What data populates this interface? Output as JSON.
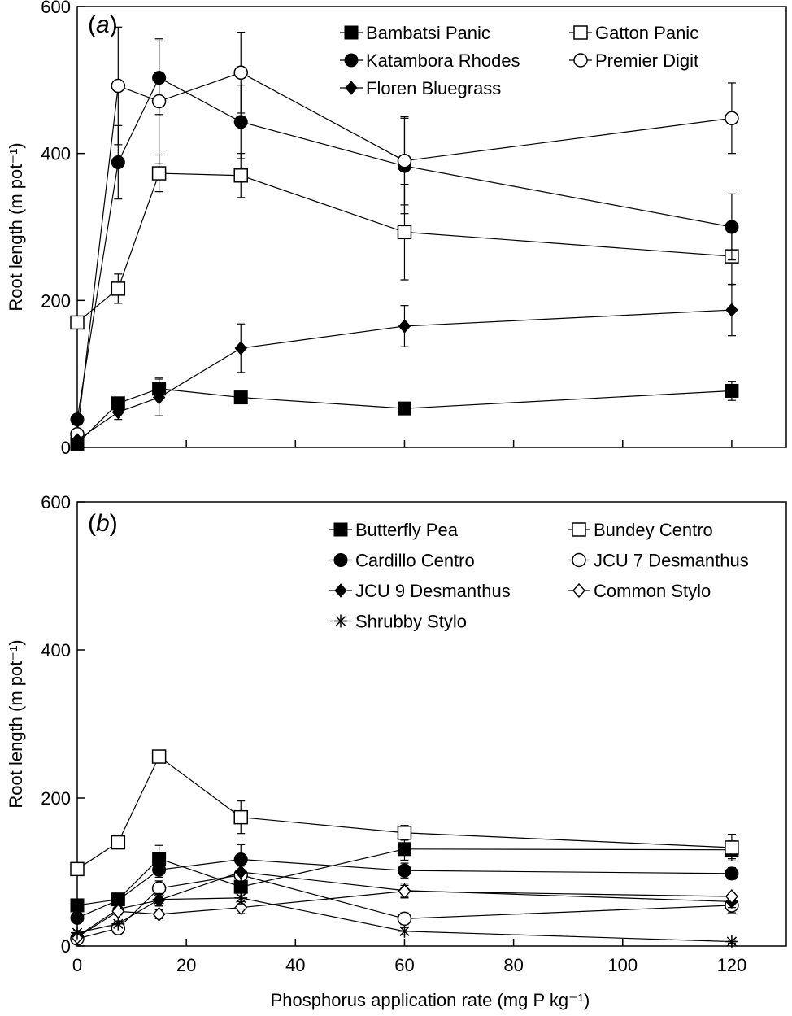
{
  "chart_data": [
    {
      "type": "line",
      "panel_label": "(a)",
      "panel_letter": "a",
      "ylabel": "Root length (m pot⁻¹)",
      "xlabel": "",
      "x_ticks": [
        "0",
        "20",
        "40",
        "60",
        "80",
        "100",
        "120"
      ],
      "y_ticks": [
        "0",
        "200",
        "400",
        "600"
      ],
      "xlim": [
        0,
        130
      ],
      "ylim": [
        0,
        600
      ],
      "legend_position": "top-right",
      "series": [
        {
          "name": "Bambatsi Panic",
          "marker": "square-filled",
          "x": [
            0,
            7.5,
            15,
            30,
            60,
            120
          ],
          "y": [
            5,
            60,
            80,
            68,
            53,
            77
          ],
          "err": [
            4,
            8,
            15,
            6,
            7,
            13
          ]
        },
        {
          "name": "Gatton Panic",
          "marker": "square-open",
          "x": [
            0,
            7.5,
            15,
            30,
            60,
            120
          ],
          "y": [
            170,
            216,
            373,
            370,
            293,
            260
          ],
          "err": [
            0,
            20,
            25,
            30,
            65,
            40
          ]
        },
        {
          "name": "Katambora Rhodes",
          "marker": "circle-filled",
          "x": [
            0,
            7.5,
            15,
            30,
            60,
            120
          ],
          "y": [
            38,
            388,
            503,
            443,
            383,
            300
          ],
          "err": [
            0,
            50,
            50,
            50,
            65,
            45
          ]
        },
        {
          "name": "Premier Digit",
          "marker": "circle-open",
          "x": [
            0,
            7.5,
            15,
            30,
            60,
            120
          ],
          "y": [
            18,
            492,
            471,
            510,
            390,
            448
          ],
          "err": [
            0,
            80,
            85,
            55,
            60,
            48
          ]
        },
        {
          "name": "Floren Bluegrass",
          "marker": "diamond-filled",
          "x": [
            0,
            7.5,
            15,
            30,
            60,
            120
          ],
          "y": [
            10,
            48,
            68,
            135,
            165,
            187
          ],
          "err": [
            0,
            10,
            25,
            33,
            28,
            35
          ]
        }
      ]
    },
    {
      "type": "line",
      "panel_label": "(b)",
      "panel_letter": "b",
      "ylabel": "Root length (m pot⁻¹)",
      "xlabel": "Phosphorus application rate (mg P kg⁻¹)",
      "x_ticks": [
        "0",
        "20",
        "40",
        "60",
        "80",
        "100",
        "120"
      ],
      "y_ticks": [
        "0",
        "200",
        "400",
        "600"
      ],
      "xlim": [
        0,
        130
      ],
      "ylim": [
        0,
        600
      ],
      "legend_position": "top-right",
      "series": [
        {
          "name": "Butterfly Pea",
          "marker": "square-filled",
          "x": [
            0,
            7.5,
            15,
            30,
            60,
            120
          ],
          "y": [
            55,
            63,
            118,
            80,
            131,
            130
          ],
          "err": [
            5,
            6,
            18,
            12,
            15,
            12
          ]
        },
        {
          "name": "Bundey Centro",
          "marker": "square-open",
          "x": [
            0,
            7.5,
            15,
            30,
            60,
            120
          ],
          "y": [
            104,
            140,
            256,
            174,
            153,
            133
          ],
          "err": [
            0,
            0,
            0,
            22,
            10,
            18
          ]
        },
        {
          "name": "Cardillo Centro",
          "marker": "circle-filled",
          "x": [
            0,
            7.5,
            15,
            30,
            60,
            120
          ],
          "y": [
            38,
            62,
            103,
            117,
            102,
            98
          ],
          "err": [
            4,
            6,
            10,
            20,
            10,
            8
          ]
        },
        {
          "name": "JCU 7 Desmanthus",
          "marker": "circle-open",
          "x": [
            0,
            7.5,
            15,
            30,
            60,
            120
          ],
          "y": [
            10,
            24,
            78,
            96,
            37,
            55
          ],
          "err": [
            2,
            4,
            10,
            12,
            8,
            10
          ]
        },
        {
          "name": "JCU 9 Desmanthus",
          "marker": "diamond-filled",
          "x": [
            0,
            7.5,
            15,
            30,
            60,
            120
          ],
          "y": [
            13,
            50,
            62,
            100,
            75,
            60
          ],
          "err": [
            2,
            5,
            8,
            12,
            10,
            8
          ]
        },
        {
          "name": "Common Stylo",
          "marker": "diamond-open",
          "x": [
            0,
            7.5,
            15,
            30,
            60,
            120
          ],
          "y": [
            12,
            47,
            43,
            52,
            74,
            67
          ],
          "err": [
            2,
            5,
            6,
            8,
            8,
            6
          ]
        },
        {
          "name": "Shrubby Stylo",
          "marker": "star",
          "x": [
            0,
            7.5,
            15,
            30,
            60,
            120
          ],
          "y": [
            18,
            30,
            63,
            65,
            20,
            6
          ],
          "err": [
            3,
            4,
            8,
            8,
            5,
            2
          ]
        }
      ]
    }
  ]
}
